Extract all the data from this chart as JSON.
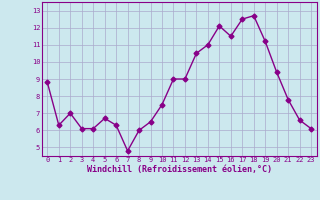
{
  "x": [
    0,
    1,
    2,
    3,
    4,
    5,
    6,
    7,
    8,
    9,
    10,
    11,
    12,
    13,
    14,
    15,
    16,
    17,
    18,
    19,
    20,
    21,
    22,
    23
  ],
  "y": [
    8.8,
    6.3,
    7.0,
    6.1,
    6.1,
    6.7,
    6.3,
    4.8,
    6.0,
    6.5,
    7.5,
    9.0,
    9.0,
    10.5,
    11.0,
    12.1,
    11.5,
    12.5,
    12.7,
    11.2,
    9.4,
    7.8,
    6.6,
    6.1
  ],
  "line_color": "#880088",
  "marker": "D",
  "marker_size": 2.5,
  "xlabel": "Windchill (Refroidissement éolien,°C)",
  "ylim": [
    4.5,
    13.5
  ],
  "yticks": [
    5,
    6,
    7,
    8,
    9,
    10,
    11,
    12,
    13
  ],
  "xticks": [
    0,
    1,
    2,
    3,
    4,
    5,
    6,
    7,
    8,
    9,
    10,
    11,
    12,
    13,
    14,
    15,
    16,
    17,
    18,
    19,
    20,
    21,
    22,
    23
  ],
  "bg_color": "#cce8ee",
  "grid_color": "#aaaacc",
  "tick_color": "#880088",
  "axis_label_color": "#880088",
  "font_size_ticks": 5,
  "font_size_xlabel": 6,
  "linewidth": 1.0
}
